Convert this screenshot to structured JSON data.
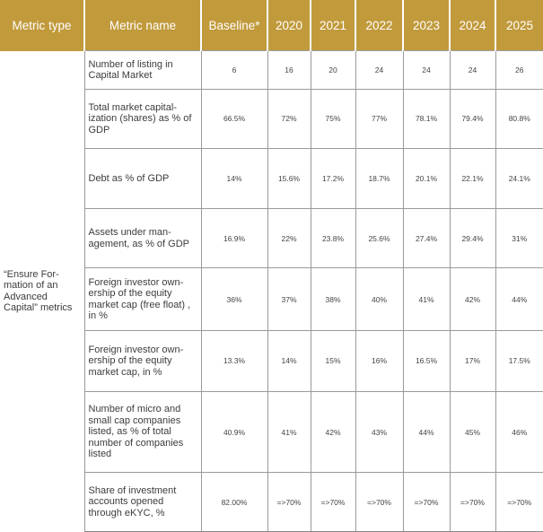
{
  "header": {
    "metric_type": "Metric type",
    "metric_name": "Metric name",
    "baseline": "Baseline*",
    "years": [
      "2020",
      "2021",
      "2022",
      "2023",
      "2024",
      "2025"
    ]
  },
  "metric_type_label": "“Ensure For-mation of an Advanced Capital” metrics",
  "rows": [
    {
      "name": "Number of listing in Capital Market",
      "values": [
        "6",
        "16",
        "20",
        "24",
        "24",
        "24",
        "26"
      ]
    },
    {
      "name": "Total market capital-ization (shares) as % of GDP",
      "values": [
        "66.5%",
        "72%",
        "75%",
        "77%",
        "78.1%",
        "79.4%",
        "80.8%"
      ]
    },
    {
      "name": "Debt as % of GDP",
      "values": [
        "14%",
        "15.6%",
        "17.2%",
        "18.7%",
        "20.1%",
        "22.1%",
        "24.1%"
      ]
    },
    {
      "name": "Assets under man-agement, as % of GDP",
      "values": [
        "16.9%",
        "22%",
        "23.8%",
        "25.6%",
        "27.4%",
        "29.4%",
        "31%"
      ]
    },
    {
      "name": "Foreign investor own-ership of the equity market cap (free float) , in %",
      "values": [
        "36%",
        "37%",
        "38%",
        "40%",
        "41%",
        "42%",
        "44%"
      ]
    },
    {
      "name": "Foreign investor own-ership of the equity market cap, in %",
      "values": [
        "13.3%",
        "14%",
        "15%",
        "16%",
        "16.5%",
        "17%",
        "17.5%"
      ]
    },
    {
      "name": "Number of micro and small cap companies listed, as % of total number of companies listed",
      "values": [
        "40.9%",
        "41%",
        "42%",
        "43%",
        "44%",
        "45%",
        "46%"
      ]
    },
    {
      "name": "Share of investment accounts opened through eKYC, %",
      "values": [
        "82.00%",
        "=>70%",
        "=>70%",
        "=>70%",
        "=>70%",
        "=>70%",
        "=>70%"
      ]
    }
  ],
  "colors": {
    "header_bg": "#c19a3c",
    "header_text": "#ffffff",
    "grid": "#9a9a9a",
    "body_text": "#444444"
  }
}
